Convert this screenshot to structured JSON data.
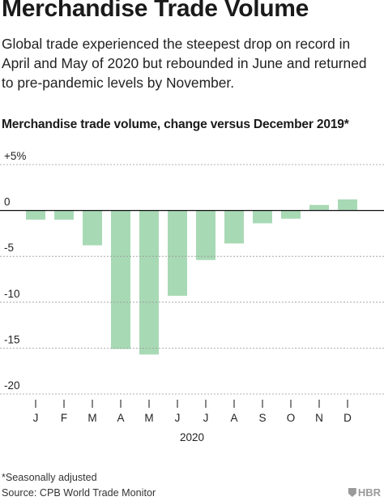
{
  "title": "Merchandise Trade Volume",
  "subtitle": "Global trade experienced the steepest drop on record in April and May of 2020 but rebounded in June and returned to pre-pandemic levels by November.",
  "footnote": "*Seasonally adjusted",
  "source": "Source: CPB World Trade Monitor",
  "logo_text": "HBR",
  "chart_data": {
    "type": "bar",
    "title": "Merchandise trade volume, change versus December 2019*",
    "xlabel": "2020",
    "ylabel": "",
    "categories": [
      "J",
      "F",
      "M",
      "A",
      "M",
      "J",
      "J",
      "A",
      "S",
      "O",
      "N",
      "D"
    ],
    "values": [
      -1.0,
      -1.0,
      -3.8,
      -15.1,
      -15.7,
      -9.3,
      -5.4,
      -3.6,
      -1.4,
      -0.9,
      0.6,
      1.2
    ],
    "ylim": [
      -20,
      5
    ],
    "y_ticks": [
      5,
      0,
      -5,
      -10,
      -15,
      -20
    ],
    "y_tick_labels": [
      "+5%",
      "0",
      "-5",
      "-10",
      "-15",
      "-20"
    ],
    "bar_color": "#a8d9b5",
    "grid": true
  }
}
